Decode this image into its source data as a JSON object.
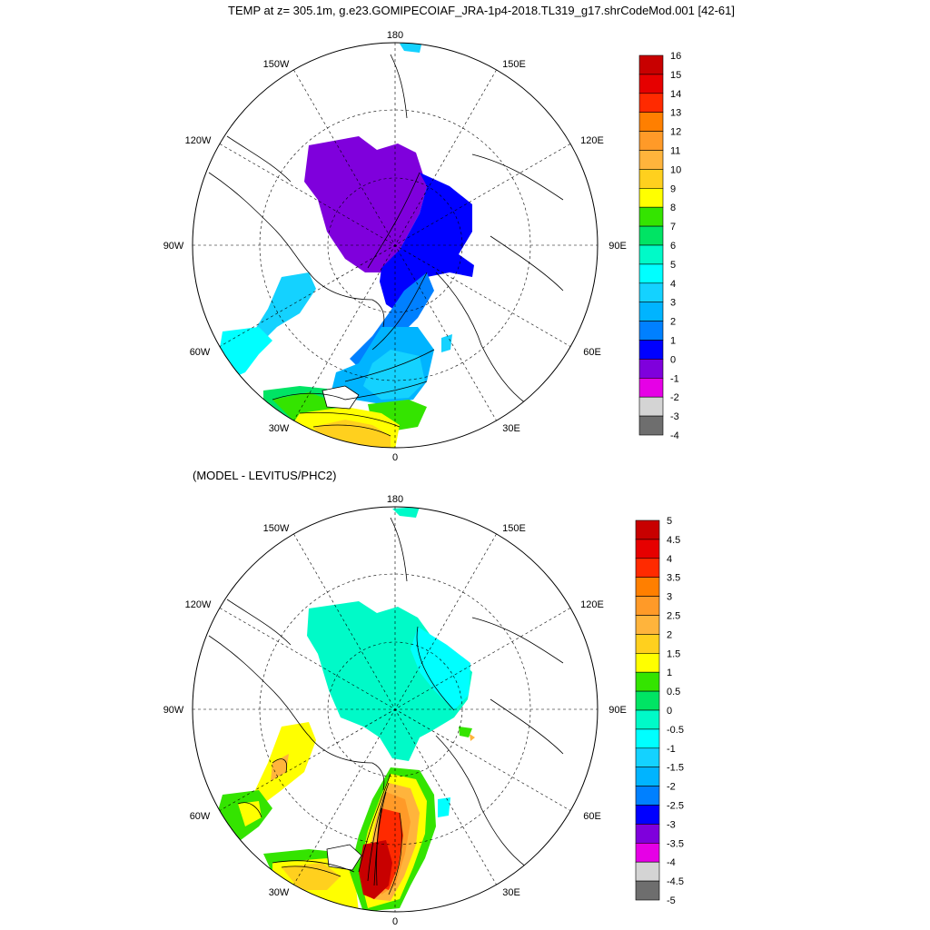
{
  "title": "TEMP at z= 305.1m, g.e23.GOMIPECOIAF_JRA-1p4-2018.TL319_g17.shrCodeMod.001 [42-61]",
  "panels": [
    {
      "id": "model",
      "subtitle": "",
      "lon_labels": [
        "180",
        "150E",
        "120E",
        "90E",
        "60E",
        "30E",
        "0",
        "30W",
        "60W",
        "90W",
        "120W",
        "150W"
      ],
      "legend": {
        "labels": [
          "16",
          "15",
          "14",
          "13",
          "12",
          "11",
          "10",
          "9",
          "8",
          "7",
          "6",
          "5",
          "4",
          "3",
          "2",
          "1",
          "0",
          "-1",
          "-2",
          "-3",
          "-4"
        ],
        "colors": [
          "#c80000",
          "#e60000",
          "#ff2a00",
          "#ff7f00",
          "#ff9a28",
          "#ffb43c",
          "#ffd01e",
          "#ffff00",
          "#34e400",
          "#00e464",
          "#00fac8",
          "#00ffff",
          "#14d2ff",
          "#00b4ff",
          "#0080ff",
          "#0000ff",
          "#7f00dc",
          "#e600e6",
          "#d4d4d4",
          "#6e6e6e"
        ]
      }
    },
    {
      "id": "difference",
      "subtitle": "(MODEL - LEVITUS/PHC2)",
      "lon_labels": [
        "180",
        "150E",
        "120E",
        "90E",
        "60E",
        "30E",
        "0",
        "30W",
        "60W",
        "90W",
        "120W",
        "150W"
      ],
      "legend": {
        "labels": [
          "5",
          "4.5",
          "4",
          "3.5",
          "3",
          "2.5",
          "2",
          "1.5",
          "1",
          "0.5",
          "0",
          "-0.5",
          "-1",
          "-1.5",
          "-2",
          "-2.5",
          "-3",
          "-3.5",
          "-4",
          "-4.5",
          "-5"
        ],
        "colors": [
          "#c80000",
          "#e60000",
          "#ff2a00",
          "#ff7f00",
          "#ff9a28",
          "#ffb43c",
          "#ffd01e",
          "#ffff00",
          "#34e400",
          "#00e464",
          "#00fac8",
          "#00ffff",
          "#14d2ff",
          "#00b4ff",
          "#0080ff",
          "#0000ff",
          "#7f00dc",
          "#e600e6",
          "#d4d4d4",
          "#6e6e6e"
        ]
      }
    }
  ]
}
